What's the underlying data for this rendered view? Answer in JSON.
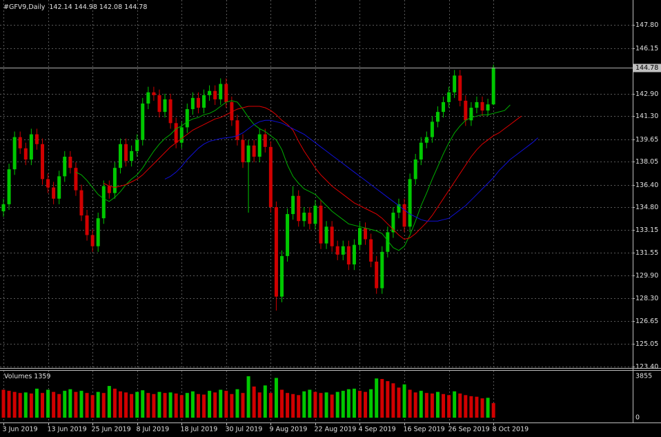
{
  "chart_data": {
    "type": "candlestick",
    "title": "#GFV9,Daily",
    "categories": [
      "3 Jun 2019",
      null,
      null,
      null,
      null,
      null,
      null,
      null,
      "13 Jun 2019",
      null,
      null,
      null,
      null,
      null,
      null,
      null,
      "25 Jun 2019",
      null,
      null,
      null,
      null,
      null,
      null,
      null,
      "8 Jul 2019",
      null,
      null,
      null,
      null,
      null,
      null,
      null,
      "18 Jul 2019",
      null,
      null,
      null,
      null,
      null,
      null,
      null,
      "30 Jul 2019",
      null,
      null,
      null,
      null,
      null,
      null,
      null,
      "9 Aug 2019",
      null,
      null,
      null,
      null,
      null,
      null,
      null,
      "22 Aug 2019",
      null,
      null,
      null,
      null,
      null,
      null,
      null,
      "4 Sep 2019",
      null,
      null,
      null,
      null,
      null,
      null,
      null,
      "16 Sep 2019",
      null,
      null,
      null,
      null,
      null,
      null,
      null,
      "26 Sep 2019",
      null,
      null,
      null,
      null,
      null,
      null,
      null,
      "8 Oct 2019",
      null,
      null,
      null,
      null,
      null,
      null,
      null,
      null
    ],
    "open": [
      134.5,
      135.0,
      137.5,
      139.8,
      139.0,
      138.2,
      140.0,
      139.3,
      136.8,
      136.2,
      135.4,
      137.0,
      138.4,
      137.6,
      136.0,
      134.2,
      132.8,
      132.0,
      134.0,
      136.3,
      135.8,
      137.6,
      139.3,
      138.1,
      138.8,
      139.6,
      142.2,
      143.0,
      142.8,
      141.6,
      142.5,
      140.8,
      139.4,
      140.5,
      141.8,
      142.6,
      141.9,
      142.8,
      143.1,
      142.5,
      143.6,
      142.3,
      141.0,
      139.6,
      138.0,
      139.2,
      138.4,
      140.0,
      139.1,
      134.8,
      128.4,
      131.3,
      134.3,
      135.6,
      133.8,
      134.4,
      133.6,
      134.9,
      132.2,
      133.4,
      132.0,
      131.4,
      132.0,
      130.7,
      132.1,
      133.3,
      132.5,
      130.9,
      129.0,
      131.6,
      133.0,
      134.4,
      135.0,
      133.4,
      136.8,
      138.2,
      139.4,
      139.8,
      140.9,
      141.6,
      142.3,
      143.0,
      144.2,
      142.4,
      141.0,
      141.9,
      142.3,
      141.7,
      142.14,
      null,
      null,
      null,
      null,
      null,
      null,
      null,
      null
    ],
    "high": [
      135.4,
      137.9,
      140.2,
      140.2,
      139.4,
      140.4,
      140.4,
      139.7,
      137.2,
      136.6,
      137.4,
      138.8,
      138.8,
      138.0,
      136.4,
      134.6,
      133.2,
      134.4,
      136.7,
      136.7,
      138.0,
      139.7,
      139.7,
      139.2,
      140.0,
      142.6,
      143.4,
      143.4,
      143.2,
      142.9,
      142.9,
      141.2,
      140.9,
      142.2,
      143.0,
      143.0,
      143.2,
      143.5,
      143.5,
      144.0,
      144.0,
      142.7,
      141.4,
      140.0,
      139.6,
      139.6,
      140.4,
      140.4,
      139.5,
      135.2,
      131.7,
      134.7,
      136.3,
      136.0,
      134.8,
      134.8,
      135.3,
      135.3,
      133.8,
      133.8,
      132.4,
      132.4,
      132.4,
      132.5,
      133.7,
      133.7,
      132.9,
      131.3,
      132.0,
      133.4,
      134.8,
      135.4,
      135.4,
      137.2,
      138.6,
      139.8,
      140.2,
      141.3,
      142.0,
      142.7,
      143.4,
      144.6,
      144.6,
      142.8,
      142.3,
      142.7,
      142.7,
      142.54,
      144.98,
      null,
      null,
      null,
      null,
      null,
      null,
      null,
      null
    ],
    "low": [
      134.1,
      134.6,
      137.1,
      138.6,
      137.8,
      137.8,
      138.9,
      136.4,
      135.8,
      135.0,
      135.0,
      136.6,
      137.2,
      135.6,
      133.8,
      132.4,
      131.6,
      131.6,
      133.6,
      135.4,
      135.4,
      137.2,
      137.7,
      137.7,
      138.4,
      139.2,
      141.8,
      142.4,
      141.2,
      141.2,
      140.4,
      139.0,
      139.0,
      140.1,
      141.4,
      141.5,
      141.5,
      142.4,
      142.1,
      142.1,
      141.9,
      140.6,
      139.2,
      137.6,
      134.4,
      138.0,
      138.0,
      138.7,
      134.4,
      127.4,
      128.0,
      130.9,
      133.9,
      133.4,
      133.4,
      133.2,
      133.2,
      131.8,
      131.8,
      131.6,
      131.0,
      131.0,
      130.3,
      130.3,
      131.7,
      132.1,
      130.5,
      128.6,
      128.6,
      131.2,
      132.6,
      134.0,
      133.0,
      133.0,
      136.4,
      137.8,
      139.0,
      139.4,
      140.5,
      141.2,
      141.9,
      142.6,
      142.0,
      140.6,
      140.6,
      141.5,
      141.3,
      141.3,
      142.08,
      null,
      null,
      null,
      null,
      null,
      null,
      null,
      null
    ],
    "close": [
      135.0,
      137.5,
      139.8,
      139.0,
      138.2,
      140.0,
      139.3,
      136.8,
      136.2,
      135.4,
      137.0,
      138.4,
      137.6,
      136.0,
      134.2,
      132.8,
      132.0,
      134.0,
      136.3,
      135.8,
      137.6,
      139.3,
      138.1,
      138.8,
      139.6,
      142.2,
      143.0,
      142.8,
      141.6,
      142.5,
      140.8,
      139.4,
      140.5,
      141.8,
      142.6,
      141.9,
      142.8,
      143.1,
      142.5,
      143.6,
      142.3,
      141.0,
      139.6,
      138.0,
      139.2,
      138.4,
      140.0,
      139.1,
      134.8,
      128.4,
      131.3,
      134.3,
      135.6,
      133.8,
      134.4,
      133.6,
      134.9,
      132.2,
      133.4,
      132.0,
      131.4,
      132.0,
      130.7,
      132.1,
      133.3,
      132.5,
      130.9,
      129.0,
      131.6,
      133.0,
      134.4,
      135.0,
      133.4,
      136.8,
      138.2,
      139.4,
      139.8,
      140.9,
      141.6,
      142.3,
      143.0,
      144.2,
      142.4,
      141.0,
      141.9,
      142.3,
      141.7,
      142.14,
      144.78,
      null,
      null,
      null,
      null,
      null,
      null,
      null,
      null
    ],
    "up_color": "#00c800",
    "down_color": "#d00000",
    "series": [
      {
        "color": "#00b000",
        "values": [
          null,
          null,
          null,
          null,
          null,
          null,
          null,
          null,
          null,
          null,
          null,
          null,
          null,
          137.3,
          137.1,
          136.7,
          136.2,
          135.7,
          135.4,
          135.2,
          135.5,
          135.9,
          136.4,
          136.8,
          137.1,
          137.6,
          138.2,
          138.8,
          139.3,
          139.7,
          140.0,
          140.4,
          140.6,
          140.9,
          141.1,
          141.2,
          141.4,
          141.5,
          141.7,
          142.0,
          142.3,
          142.4,
          142.3,
          141.8,
          141.2,
          140.7,
          140.4,
          140.2,
          139.9,
          139.6,
          138.9,
          137.8,
          137.0,
          136.5,
          136.1,
          135.9,
          135.7,
          135.3,
          134.9,
          134.5,
          134.2,
          133.9,
          133.6,
          133.5,
          133.4,
          133.3,
          133.2,
          133.1,
          132.9,
          132.4,
          131.9,
          131.7,
          132.0,
          132.8,
          133.8,
          134.9,
          135.8,
          136.8,
          137.7,
          138.6,
          139.4,
          140.1,
          140.6,
          141.0,
          141.2,
          141.3,
          141.4,
          141.4,
          141.5,
          141.6,
          141.7,
          142.1,
          null,
          null,
          null,
          null,
          null
        ]
      },
      {
        "color": "#e00000",
        "values": [
          null,
          null,
          null,
          null,
          null,
          null,
          null,
          null,
          null,
          null,
          null,
          null,
          null,
          null,
          null,
          null,
          null,
          null,
          136.5,
          136.3,
          136.2,
          136.3,
          136.4,
          136.6,
          136.8,
          137.1,
          137.5,
          137.9,
          138.3,
          138.7,
          139.1,
          139.4,
          139.7,
          140.0,
          140.3,
          140.5,
          140.7,
          140.9,
          141.1,
          141.2,
          141.4,
          141.6,
          141.8,
          141.9,
          142.0,
          142.0,
          142.0,
          141.9,
          141.7,
          141.4,
          141.0,
          140.7,
          140.3,
          139.5,
          138.8,
          138.2,
          137.6,
          137.1,
          136.7,
          136.3,
          136.0,
          135.7,
          135.4,
          135.1,
          134.9,
          134.7,
          134.5,
          134.3,
          134.0,
          133.6,
          133.2,
          132.8,
          132.5,
          132.6,
          132.9,
          133.3,
          133.7,
          134.2,
          134.8,
          135.4,
          136.0,
          136.6,
          137.2,
          137.8,
          138.4,
          138.9,
          139.3,
          139.6,
          139.9,
          140.1,
          140.4,
          140.7,
          141.0,
          141.3,
          null,
          null,
          null
        ]
      },
      {
        "color": "#1010d8",
        "values": [
          null,
          null,
          null,
          null,
          null,
          null,
          null,
          null,
          null,
          null,
          null,
          null,
          null,
          null,
          null,
          null,
          null,
          null,
          null,
          null,
          null,
          null,
          null,
          null,
          null,
          null,
          null,
          null,
          null,
          136.8,
          137.0,
          137.3,
          137.7,
          138.2,
          138.6,
          139.0,
          139.3,
          139.5,
          139.6,
          139.7,
          139.75,
          139.8,
          139.9,
          140.1,
          140.4,
          140.7,
          140.9,
          141.0,
          141.0,
          140.9,
          140.8,
          140.6,
          140.4,
          140.2,
          140.0,
          139.7,
          139.4,
          139.1,
          138.8,
          138.5,
          138.2,
          137.9,
          137.6,
          137.3,
          137.0,
          136.7,
          136.4,
          136.1,
          135.8,
          135.5,
          135.2,
          134.9,
          134.6,
          134.3,
          134.1,
          133.9,
          133.8,
          133.8,
          133.8,
          133.9,
          134.0,
          134.3,
          134.6,
          134.9,
          135.3,
          135.7,
          136.1,
          136.5,
          136.9,
          137.4,
          137.8,
          138.2,
          138.5,
          138.8,
          139.1,
          139.4,
          139.75
        ]
      }
    ],
    "volume_label": "Volumes",
    "volume": [
      2600,
      2500,
      2400,
      2300,
      2350,
      2250,
      2700,
      2300,
      2600,
      2400,
      2200,
      2500,
      2650,
      2400,
      2500,
      2300,
      2100,
      2400,
      2300,
      2950,
      2700,
      2450,
      2350,
      2200,
      2400,
      2550,
      2300,
      2200,
      2400,
      2300,
      2350,
      2250,
      2100,
      2300,
      2450,
      2200,
      2150,
      2500,
      2350,
      2600,
      2500,
      2200,
      2650,
      2300,
      3855,
      2900,
      2350,
      3000,
      2300,
      3700,
      2600,
      2300,
      2200,
      2100,
      2450,
      2600,
      2400,
      2300,
      2350,
      2150,
      2400,
      2500,
      2650,
      2700,
      2500,
      2400,
      2650,
      3650,
      3600,
      3400,
      3200,
      2800,
      3100,
      2600,
      2350,
      2500,
      2300,
      2250,
      2400,
      2200,
      2100,
      2450,
      2250,
      2100,
      2000,
      1950,
      1800,
      1850,
      1359,
      null,
      null,
      null,
      null,
      null,
      null,
      null,
      null
    ],
    "volume_lim": [
      0,
      3855
    ],
    "ylim": [
      123.3,
      149.6
    ],
    "yticks": [
      {
        "value": 147.8,
        "label": "147.80"
      },
      146.15,
      {
        "value": 142.9,
        "label": "142.90"
      },
      {
        "value": 141.3,
        "label": "141.30"
      },
      139.65,
      138.05,
      {
        "value": 136.4,
        "label": "136.40"
      },
      {
        "value": 134.8,
        "label": "134.80"
      },
      133.15,
      131.55,
      {
        "value": 129.9,
        "label": "129.90"
      },
      {
        "value": 128.3,
        "label": "128.30"
      },
      126.65,
      125.05,
      {
        "value": 123.4,
        "label": "123.40"
      }
    ],
    "grid": true
  }
}
